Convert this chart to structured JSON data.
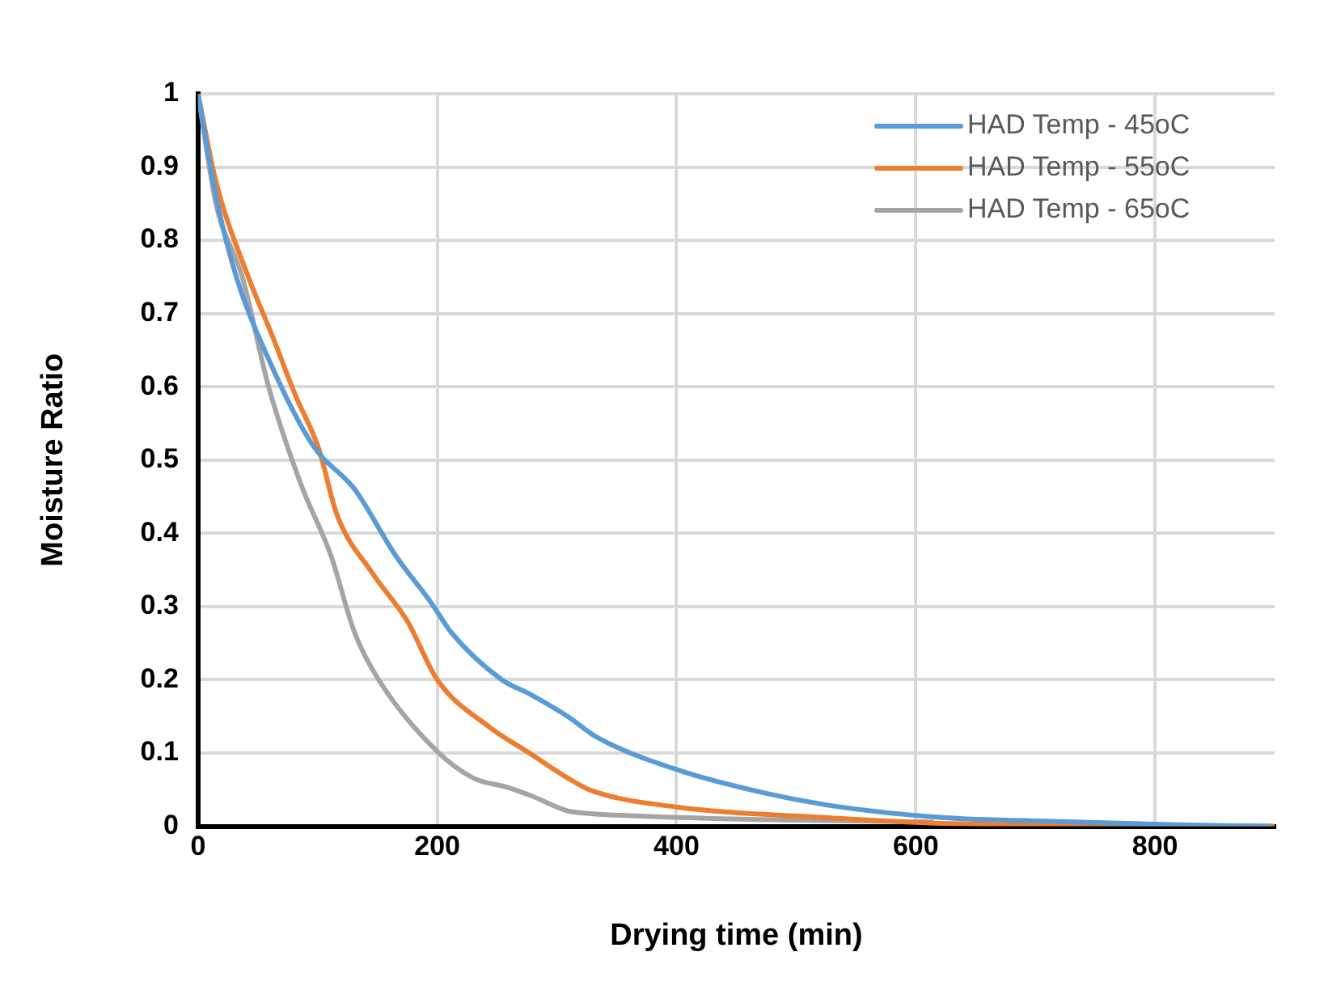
{
  "chart_data": {
    "type": "line",
    "xlabel": "Drying time (min)",
    "ylabel": "Moisture Ratio",
    "xlim": [
      0,
      900
    ],
    "xticks": [
      0,
      200,
      400,
      600,
      800
    ],
    "ylim": [
      0,
      1
    ],
    "yticks": [
      0,
      0.1,
      0.2,
      0.3,
      0.4,
      0.5,
      0.6,
      0.7,
      0.8,
      0.9,
      1
    ],
    "grid": true,
    "legend": "top right",
    "marker": "none",
    "line_style": "solid",
    "series": [
      {
        "name": "HAD Temp - 45oC",
        "color": "#5b9bd5",
        "x": [
          0,
          15,
          32,
          57,
          96,
          131,
          165,
          195,
          212,
          254,
          278,
          309,
          333,
          401,
          475,
          534,
          622,
          720,
          819,
          897
        ],
        "values": [
          1,
          0.86,
          0.75,
          0.645,
          0.52,
          0.46,
          0.37,
          0.305,
          0.264,
          0.2,
          0.18,
          0.15,
          0.122,
          0.077,
          0.045,
          0.027,
          0.012,
          0.0065,
          0.002,
          0
        ]
      },
      {
        "name": "HAD Temp - 55oC",
        "color": "#ed7d31",
        "x": [
          0,
          15,
          42,
          62,
          81,
          101,
          116,
          146,
          175,
          200,
          244,
          278,
          309,
          327,
          401,
          524,
          622,
          900
        ],
        "values": [
          1,
          0.88,
          0.75,
          0.67,
          0.59,
          0.515,
          0.426,
          0.345,
          0.28,
          0.2,
          0.135,
          0.099,
          0.066,
          0.05,
          0.026,
          0.012,
          0.004,
          0
        ]
      },
      {
        "name": "HAD Temp - 65oC",
        "color": "#a5a5a5",
        "x": [
          0,
          15,
          37,
          59,
          86,
          111,
          131,
          151,
          200,
          230,
          259,
          278,
          309,
          317,
          426,
          615
        ],
        "values": [
          1,
          0.85,
          0.75,
          0.6,
          0.467,
          0.37,
          0.264,
          0.2,
          0.102,
          0.066,
          0.053,
          0.042,
          0.021,
          0.019,
          0.011,
          0.006
        ]
      }
    ]
  }
}
